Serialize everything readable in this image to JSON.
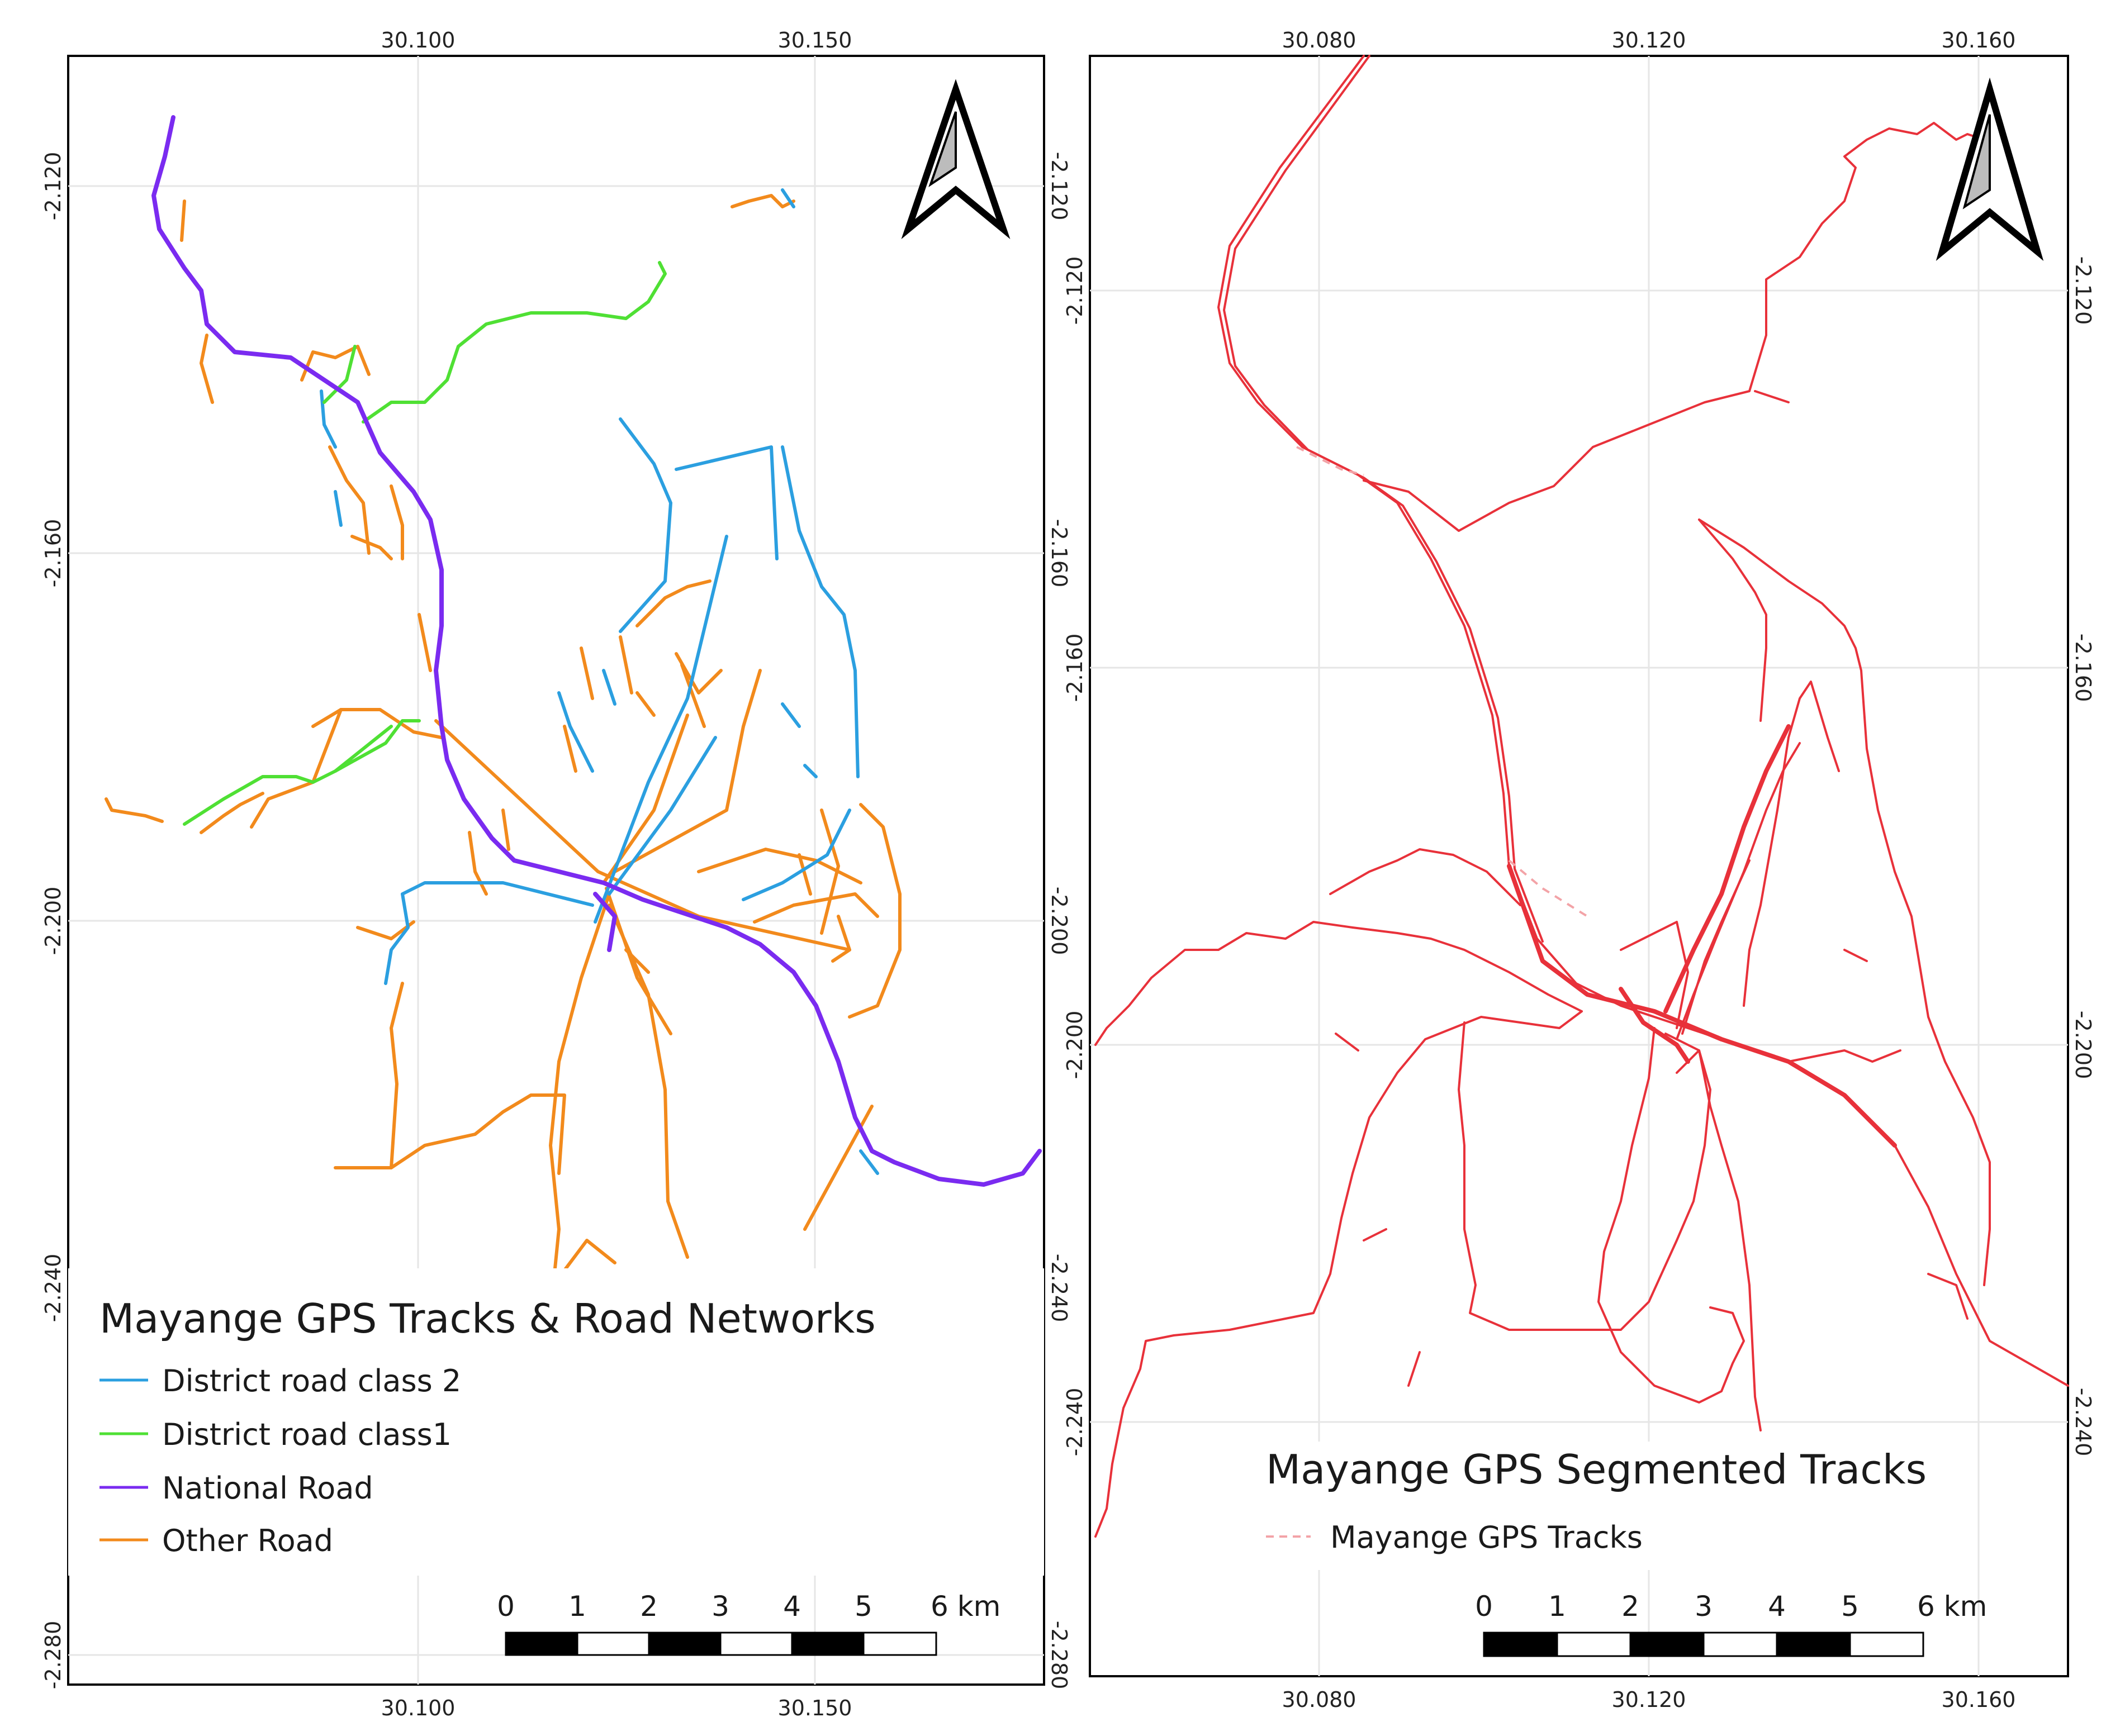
{
  "left_map": {
    "top_ticks": [
      "30.100",
      "30.150"
    ],
    "bottom_ticks": [
      "30.100",
      "30.150"
    ],
    "left_ticks": [
      "-2.120",
      "-2.160",
      "-2.200",
      "-2.240",
      "-2.280"
    ],
    "right_ticks": [
      "-2.120",
      "-2.160",
      "-2.200",
      "-2.240",
      "-2.280"
    ],
    "legend": {
      "title": "Mayange GPS Tracks & Road Networks",
      "items": [
        {
          "label": "District road class 2",
          "color": "#2b9fe0"
        },
        {
          "label": "District road class1",
          "color": "#4fe034"
        },
        {
          "label": "National Road",
          "color": "#7a2bf0"
        },
        {
          "label": "Other Road",
          "color": "#f28a1c"
        }
      ]
    },
    "scale": {
      "labels": [
        "0",
        "1",
        "2",
        "3",
        "4",
        "5",
        "6 km"
      ]
    }
  },
  "right_map": {
    "top_ticks": [
      "30.080",
      "30.120",
      "30.160"
    ],
    "bottom_ticks": [
      "30.080",
      "30.120",
      "30.160"
    ],
    "left_ticks": [
      "-2.120",
      "-2.160",
      "-2.200",
      "-2.240"
    ],
    "right_ticks": [
      "-2.120",
      "-2.160",
      "-2.200",
      "-2.240"
    ],
    "legend": {
      "title": "Mayange GPS Segmented Tracks",
      "items": [
        {
          "label": "Mayange GPS Tracks",
          "color": "#e8313a"
        }
      ]
    },
    "scale": {
      "labels": [
        "0",
        "1",
        "2",
        "3",
        "4",
        "5",
        "6 km"
      ]
    }
  }
}
